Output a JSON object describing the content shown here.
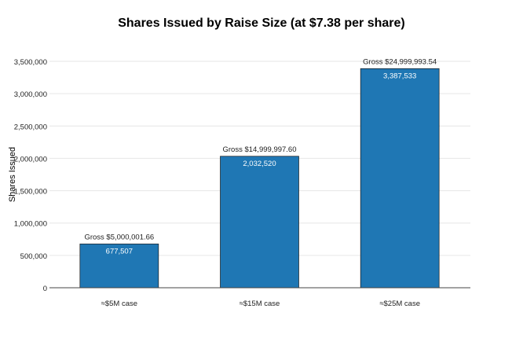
{
  "chart_data": {
    "type": "bar",
    "title": "Shares Issued by Raise Size (at $7.38 per share)",
    "xlabel": "",
    "ylabel": "Shares Issued",
    "categories": [
      "≈$5M case",
      "≈$15M case",
      "≈$25M case"
    ],
    "values": [
      677507,
      2032520,
      3387533
    ],
    "value_labels": [
      "677,507",
      "2,032,520",
      "3,387,533"
    ],
    "annotations": [
      "Gross $5,000,001.66",
      "Gross $14,999,997.60",
      "Gross $24,999,993.54"
    ],
    "ylim": [
      0,
      3500000
    ],
    "yticks": [
      0,
      500000,
      1000000,
      1500000,
      2000000,
      2500000,
      3000000,
      3500000
    ],
    "ytick_labels": [
      "0",
      "500,000",
      "1,000,000",
      "1,500,000",
      "2,000,000",
      "2,500,000",
      "3,000,000",
      "3,500,000"
    ],
    "grid": true,
    "bar_color": "#1f77b4"
  }
}
